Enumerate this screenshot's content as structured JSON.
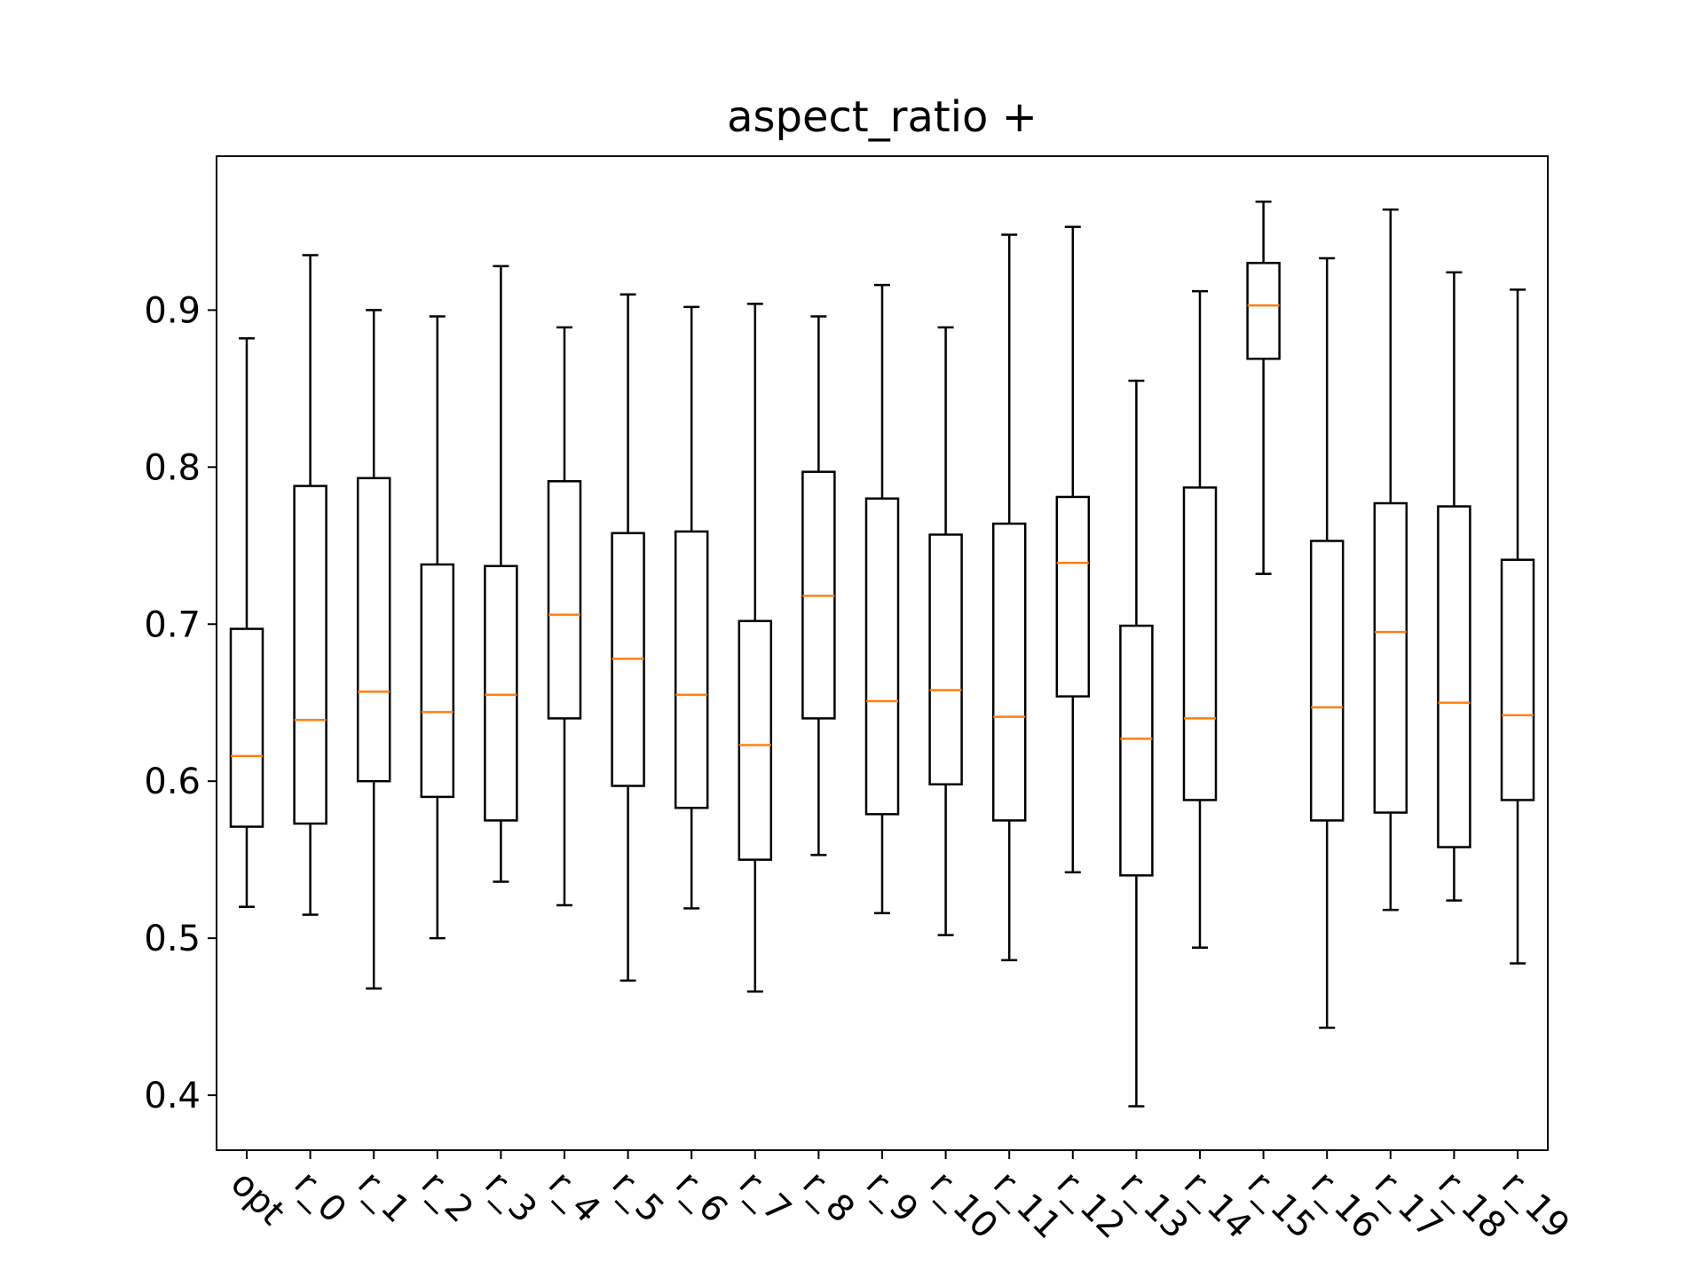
{
  "chart_data": {
    "type": "box",
    "title": "aspect_ratio +",
    "xlabel": "",
    "ylabel": "",
    "ylim": [
      0.365,
      0.998
    ],
    "yticks": [
      0.4,
      0.5,
      0.6,
      0.7,
      0.8,
      0.9
    ],
    "ytick_labels": [
      "0.4",
      "0.5",
      "0.6",
      "0.7",
      "0.8",
      "0.9"
    ],
    "categories": [
      "opt",
      "r_0",
      "r_1",
      "r_2",
      "r_3",
      "r_4",
      "r_5",
      "r_6",
      "r_7",
      "r_8",
      "r_9",
      "r_10",
      "r_11",
      "r_12",
      "r_13",
      "r_14",
      "r_15",
      "r_16",
      "r_17",
      "r_18",
      "r_19"
    ],
    "boxes": [
      {
        "whislo": 0.52,
        "q1": 0.571,
        "med": 0.616,
        "q3": 0.697,
        "whishi": 0.882
      },
      {
        "whislo": 0.515,
        "q1": 0.573,
        "med": 0.639,
        "q3": 0.788,
        "whishi": 0.935
      },
      {
        "whislo": 0.468,
        "q1": 0.6,
        "med": 0.657,
        "q3": 0.793,
        "whishi": 0.9
      },
      {
        "whislo": 0.5,
        "q1": 0.59,
        "med": 0.644,
        "q3": 0.738,
        "whishi": 0.896
      },
      {
        "whislo": 0.536,
        "q1": 0.575,
        "med": 0.655,
        "q3": 0.737,
        "whishi": 0.928
      },
      {
        "whislo": 0.521,
        "q1": 0.64,
        "med": 0.706,
        "q3": 0.791,
        "whishi": 0.889
      },
      {
        "whislo": 0.473,
        "q1": 0.597,
        "med": 0.678,
        "q3": 0.758,
        "whishi": 0.91
      },
      {
        "whislo": 0.519,
        "q1": 0.583,
        "med": 0.655,
        "q3": 0.759,
        "whishi": 0.902
      },
      {
        "whislo": 0.466,
        "q1": 0.55,
        "med": 0.623,
        "q3": 0.702,
        "whishi": 0.904
      },
      {
        "whislo": 0.553,
        "q1": 0.64,
        "med": 0.718,
        "q3": 0.797,
        "whishi": 0.896
      },
      {
        "whislo": 0.516,
        "q1": 0.579,
        "med": 0.651,
        "q3": 0.78,
        "whishi": 0.916
      },
      {
        "whislo": 0.502,
        "q1": 0.598,
        "med": 0.658,
        "q3": 0.757,
        "whishi": 0.889
      },
      {
        "whislo": 0.486,
        "q1": 0.575,
        "med": 0.641,
        "q3": 0.764,
        "whishi": 0.948
      },
      {
        "whislo": 0.542,
        "q1": 0.654,
        "med": 0.739,
        "q3": 0.781,
        "whishi": 0.953
      },
      {
        "whislo": 0.393,
        "q1": 0.54,
        "med": 0.627,
        "q3": 0.699,
        "whishi": 0.855
      },
      {
        "whislo": 0.494,
        "q1": 0.588,
        "med": 0.64,
        "q3": 0.787,
        "whishi": 0.912
      },
      {
        "whislo": 0.732,
        "q1": 0.869,
        "med": 0.903,
        "q3": 0.93,
        "whishi": 0.969
      },
      {
        "whislo": 0.443,
        "q1": 0.575,
        "med": 0.647,
        "q3": 0.753,
        "whishi": 0.933
      },
      {
        "whislo": 0.518,
        "q1": 0.58,
        "med": 0.695,
        "q3": 0.777,
        "whishi": 0.964
      },
      {
        "whislo": 0.524,
        "q1": 0.558,
        "med": 0.65,
        "q3": 0.775,
        "whishi": 0.924
      },
      {
        "whislo": 0.484,
        "q1": 0.588,
        "med": 0.642,
        "q3": 0.741,
        "whishi": 0.913
      }
    ],
    "grid": false,
    "legend": "none",
    "colors": {
      "box": "#000000",
      "median": "#ff7f0e"
    }
  }
}
